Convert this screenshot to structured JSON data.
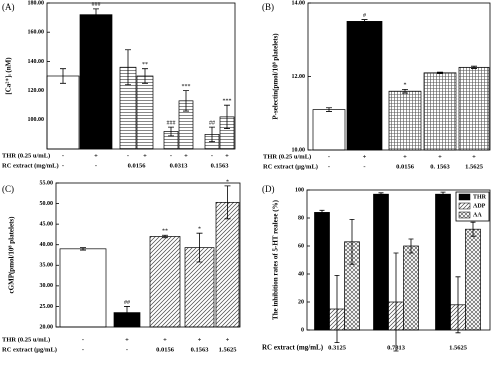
{
  "chart_data": [
    {
      "type": "bar",
      "panel_label": "(A)",
      "ylabel": "[Ca²⁺]ᵢ (nM)",
      "ylim": [
        80,
        180
      ],
      "yticks": [
        {
          "value": 100,
          "label": "100.00"
        },
        {
          "value": 120,
          "label": "120.00"
        },
        {
          "value": 140,
          "label": "140.00"
        },
        {
          "value": 160,
          "label": "160.00"
        },
        {
          "value": 180,
          "label": "180.00"
        }
      ],
      "values": [
        130,
        172,
        136,
        130,
        92,
        113,
        90,
        102
      ],
      "errors": [
        5,
        4,
        12,
        5,
        3,
        7,
        5,
        8
      ],
      "fills": [
        "white",
        "black",
        "hlines",
        "hlines",
        "hlines",
        "hlines",
        "hlines",
        "hlines"
      ],
      "annotations": [
        null,
        "###",
        null,
        "**",
        "###",
        "***",
        "##",
        "***"
      ],
      "row_labels": [
        "THR (0.25 u/mL)",
        "RC extract (mg/mL)"
      ],
      "rows": [
        [
          "-",
          "+",
          "-",
          "+",
          "-",
          "+",
          "-",
          "+"
        ],
        [
          "-",
          "-",
          "0.0156",
          null,
          "0.0313",
          null,
          "0.1563",
          null
        ]
      ]
    },
    {
      "type": "bar",
      "panel_label": "(B)",
      "ylabel": "P-selectin(pmol/10⁸ platelets)",
      "ylim": [
        10,
        14
      ],
      "yticks": [
        {
          "value": 10,
          "label": "10.00"
        },
        {
          "value": 12,
          "label": "12.00"
        },
        {
          "value": 14,
          "label": "14.00"
        }
      ],
      "values": [
        11.1,
        13.5,
        11.6,
        12.1,
        12.25
      ],
      "errors": [
        0.05,
        0.05,
        0.05,
        0.02,
        0.03
      ],
      "fills": [
        "white",
        "black",
        "grid",
        "grid",
        "grid"
      ],
      "annotations": [
        null,
        "#",
        "*",
        null,
        null
      ],
      "row_labels": [
        "THR (0.25 u/mL)",
        "RC extract (μg/mL)"
      ],
      "rows": [
        [
          "-",
          "+",
          "+",
          "+",
          "+"
        ],
        [
          "-",
          "-",
          "0.0156",
          "0. 1563",
          "1.5625"
        ]
      ]
    },
    {
      "type": "bar",
      "panel_label": "(C)",
      "ylabel": "cGMP(pmol/10⁸ platelets)",
      "ylim": [
        20,
        55
      ],
      "yticks": [
        {
          "value": 20,
          "label": "20.00"
        },
        {
          "value": 25,
          "label": "25.00"
        },
        {
          "value": 30,
          "label": "30.00"
        },
        {
          "value": 35,
          "label": "35.00"
        },
        {
          "value": 40,
          "label": "40.00"
        },
        {
          "value": 45,
          "label": "45.00"
        },
        {
          "value": 50,
          "label": "50.00"
        },
        {
          "value": 55,
          "label": "55.00"
        }
      ],
      "values": [
        39,
        23.5,
        42,
        39.3,
        50.3
      ],
      "errors": [
        0.3,
        1.5,
        0.3,
        3.5,
        4
      ],
      "fills": [
        "white",
        "black",
        "diag",
        "diag",
        "diag"
      ],
      "annotations": [
        null,
        "##",
        "**",
        "*",
        "*"
      ],
      "row_labels": [
        "THR (0.25 u/mL)",
        "RC extract (μg/mL)"
      ],
      "rows": [
        [
          "-",
          "+",
          "+",
          "+",
          "+"
        ],
        [
          "-",
          "-",
          "0.0156",
          "0.1563",
          "1.5625"
        ]
      ]
    },
    {
      "type": "grouped_bar",
      "panel_label": "(D)",
      "ylabel": "The inhibition rates of 5-HT realese (%)",
      "xlabel": "RC extract (mg/mL)",
      "categories": [
        "0.3125",
        "0.7813",
        "1.5625"
      ],
      "ylim": [
        0,
        100
      ],
      "yticks": [
        0,
        20,
        40,
        60,
        80,
        100
      ],
      "series": [
        {
          "name": "THR",
          "fill": "black",
          "values": [
            84,
            97,
            97
          ],
          "errors": [
            1.5,
            1,
            1.5
          ]
        },
        {
          "name": "ADP",
          "fill": "diag",
          "values": [
            15,
            20,
            18
          ],
          "errors": [
            24,
            35,
            20
          ]
        },
        {
          "name": "AA",
          "fill": "cross",
          "values": [
            63,
            60,
            72
          ],
          "errors": [
            16,
            5,
            5
          ]
        }
      ]
    }
  ]
}
